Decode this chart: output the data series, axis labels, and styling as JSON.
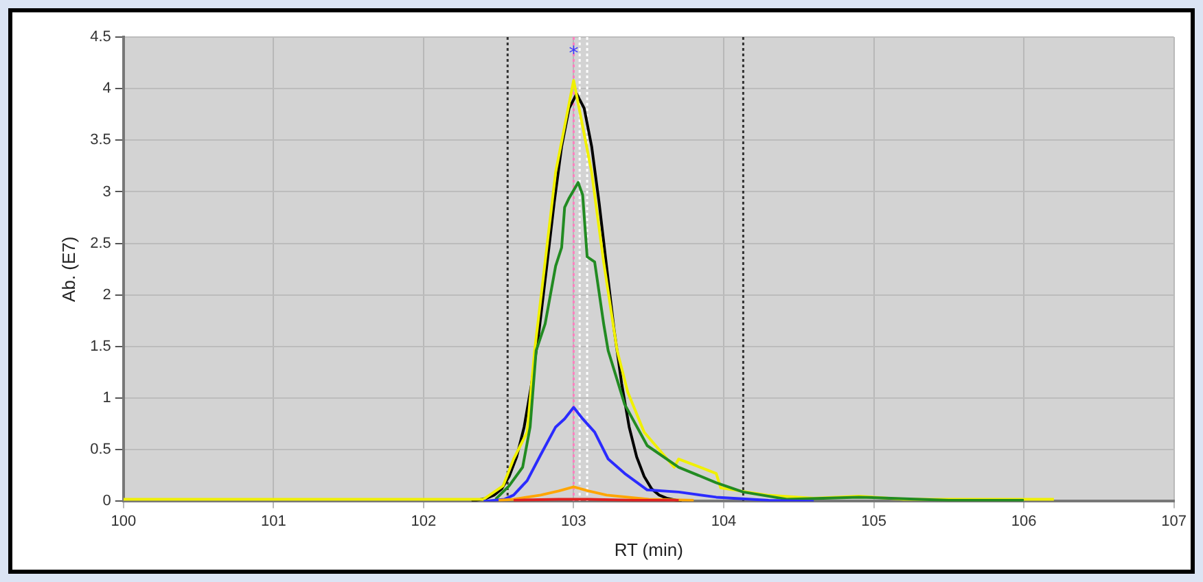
{
  "chart_data": {
    "type": "line",
    "xlabel": "RT (min)",
    "ylabel": "Ab. (E7)",
    "xlim": [
      100,
      107
    ],
    "xticks": [
      100,
      101,
      102,
      103,
      104,
      105,
      106,
      107
    ],
    "ylim": [
      0,
      4.5
    ],
    "yticks": [
      0,
      0.5,
      1,
      1.5,
      2,
      2.5,
      3,
      3.5,
      4,
      4.5
    ],
    "grid": true,
    "legend": false,
    "marker": "none",
    "line_style": "solid",
    "series": [
      {
        "color": "#e02020",
        "x": [
          102.6,
          102.9,
          103.1,
          103.4,
          103.7
        ],
        "values": [
          0.01,
          0.02,
          0.02,
          0.01,
          0.01
        ]
      },
      {
        "color": "#ffa500",
        "x": [
          102.5,
          102.6,
          102.78,
          102.9,
          103,
          103.1,
          103.22,
          103.5,
          103.8
        ],
        "values": [
          0.01,
          0.02,
          0.06,
          0.1,
          0.14,
          0.1,
          0.06,
          0.02,
          0.01
        ]
      },
      {
        "color": "#2b2bff",
        "x": [
          102.4,
          102.54,
          102.6,
          102.69,
          102.78,
          102.88,
          102.94,
          103,
          103.06,
          103.14,
          103.23,
          103.34,
          103.49,
          103.7,
          103.95,
          104.3,
          104.6
        ],
        "values": [
          0,
          0.02,
          0.06,
          0.2,
          0.45,
          0.72,
          0.8,
          0.91,
          0.8,
          0.67,
          0.41,
          0.27,
          0.11,
          0.09,
          0.04,
          0.01,
          0
        ]
      },
      {
        "color": "#228b22",
        "x": [
          102.48,
          102.57,
          102.66,
          102.71,
          102.75,
          102.81,
          102.88,
          102.92,
          102.94,
          102.97,
          103.03,
          103.06,
          103.09,
          103.14,
          103.2,
          103.23,
          103.34,
          103.49,
          103.7,
          103.95,
          104.13,
          104.42,
          104.9,
          105.5,
          106
        ],
        "values": [
          0.02,
          0.15,
          0.33,
          0.72,
          1.46,
          1.72,
          2.28,
          2.46,
          2.85,
          2.94,
          3.09,
          2.97,
          2.37,
          2.32,
          1.72,
          1.46,
          0.94,
          0.54,
          0.33,
          0.18,
          0.09,
          0.02,
          0.04,
          0.01,
          0.01
        ]
      },
      {
        "color": "#f0f000",
        "x": [
          100,
          100.5,
          101,
          101.5,
          102,
          102.4,
          102.53,
          102.6,
          102.69,
          102.74,
          102.81,
          102.88,
          103,
          103.12,
          103.2,
          103.29,
          103.36,
          103.47,
          103.67,
          103.7,
          103.95,
          103.98,
          104.29,
          104.6,
          104.9,
          105.2,
          105.5,
          106,
          106.2
        ],
        "values": [
          0.02,
          0.02,
          0.02,
          0.02,
          0.02,
          0.02,
          0.15,
          0.41,
          0.67,
          1.46,
          2.32,
          3.19,
          4.08,
          3.19,
          2.32,
          1.46,
          1.06,
          0.67,
          0.33,
          0.41,
          0.27,
          0.13,
          0.06,
          0.03,
          0.05,
          0.02,
          0.02,
          0.02,
          0.02
        ]
      },
      {
        "color": "#000000",
        "x": [
          102.32,
          102.42,
          102.47,
          102.52,
          102.57,
          102.62,
          102.67,
          102.72,
          102.77,
          102.82,
          102.87,
          102.92,
          102.97,
          103.02,
          103.07,
          103.12,
          103.17,
          103.22,
          103.27,
          103.32,
          103.37,
          103.42,
          103.47,
          103.52,
          103.57,
          103.62,
          103.72
        ],
        "values": [
          0,
          0.03,
          0.06,
          0.12,
          0.24,
          0.43,
          0.72,
          1.14,
          1.66,
          2.27,
          2.89,
          3.44,
          3.81,
          3.95,
          3.81,
          3.44,
          2.89,
          2.27,
          1.66,
          1.14,
          0.72,
          0.43,
          0.24,
          0.12,
          0.06,
          0.03,
          0
        ]
      }
    ],
    "ref_lines": [
      {
        "axis": "x",
        "value": 102.56,
        "color": "#333333",
        "line_style": "dotted"
      },
      {
        "axis": "x",
        "value": 104.13,
        "color": "#333333",
        "line_style": "dotted"
      },
      {
        "axis": "x",
        "value": 103.0,
        "color": "#ff80c0",
        "line_style": "dotted"
      },
      {
        "axis": "x",
        "value": 103.04,
        "color": "#ffffff",
        "line_style": "dotted"
      },
      {
        "axis": "x",
        "value": 103.09,
        "color": "#ffffff",
        "line_style": "dotted"
      }
    ],
    "annotations": [
      {
        "text": "*",
        "x": 103,
        "y": 4.33
      }
    ]
  }
}
